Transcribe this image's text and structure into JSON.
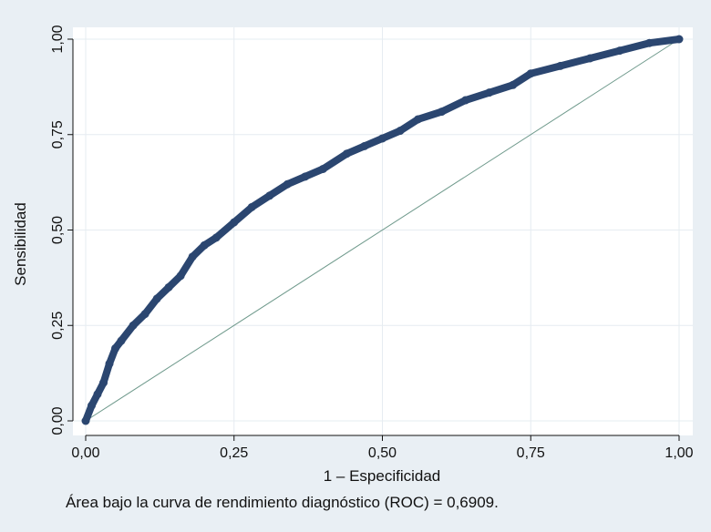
{
  "chart_data": {
    "type": "line",
    "title": "",
    "xlabel": "1 – Especificidad",
    "ylabel": "Sensibilidad",
    "xlim": [
      0,
      1
    ],
    "ylim": [
      0,
      1
    ],
    "x_ticks": [
      0,
      0.25,
      0.5,
      0.75,
      1
    ],
    "x_tick_labels": [
      "0,00",
      "0,25",
      "0,50",
      "0,75",
      "1,00"
    ],
    "y_ticks": [
      0,
      0.25,
      0.5,
      0.75,
      1
    ],
    "y_tick_labels": [
      "0,00",
      "0,25",
      "0,50",
      "0,75",
      "1,00"
    ],
    "grid": true,
    "series": [
      {
        "role": "roc-curve",
        "color": "#2b4670",
        "x": [
          0,
          0.01,
          0.02,
          0.03,
          0.04,
          0.05,
          0.06,
          0.08,
          0.1,
          0.12,
          0.14,
          0.16,
          0.18,
          0.2,
          0.22,
          0.25,
          0.28,
          0.31,
          0.34,
          0.37,
          0.4,
          0.44,
          0.47,
          0.5,
          0.53,
          0.56,
          0.6,
          0.64,
          0.68,
          0.72,
          0.75,
          0.8,
          0.85,
          0.9,
          0.95,
          1.0
        ],
        "y": [
          0,
          0.04,
          0.07,
          0.1,
          0.15,
          0.19,
          0.21,
          0.25,
          0.28,
          0.32,
          0.35,
          0.38,
          0.43,
          0.46,
          0.48,
          0.52,
          0.56,
          0.59,
          0.62,
          0.64,
          0.66,
          0.7,
          0.72,
          0.74,
          0.76,
          0.79,
          0.81,
          0.84,
          0.86,
          0.88,
          0.91,
          0.93,
          0.95,
          0.97,
          0.99,
          1.0
        ]
      },
      {
        "role": "reference-line",
        "color": "#6f9a8c",
        "x": [
          0,
          1
        ],
        "y": [
          0,
          1
        ]
      }
    ],
    "note": "Área bajo la curva de rendimiento diagnóstico (ROC) = 0,6909."
  }
}
